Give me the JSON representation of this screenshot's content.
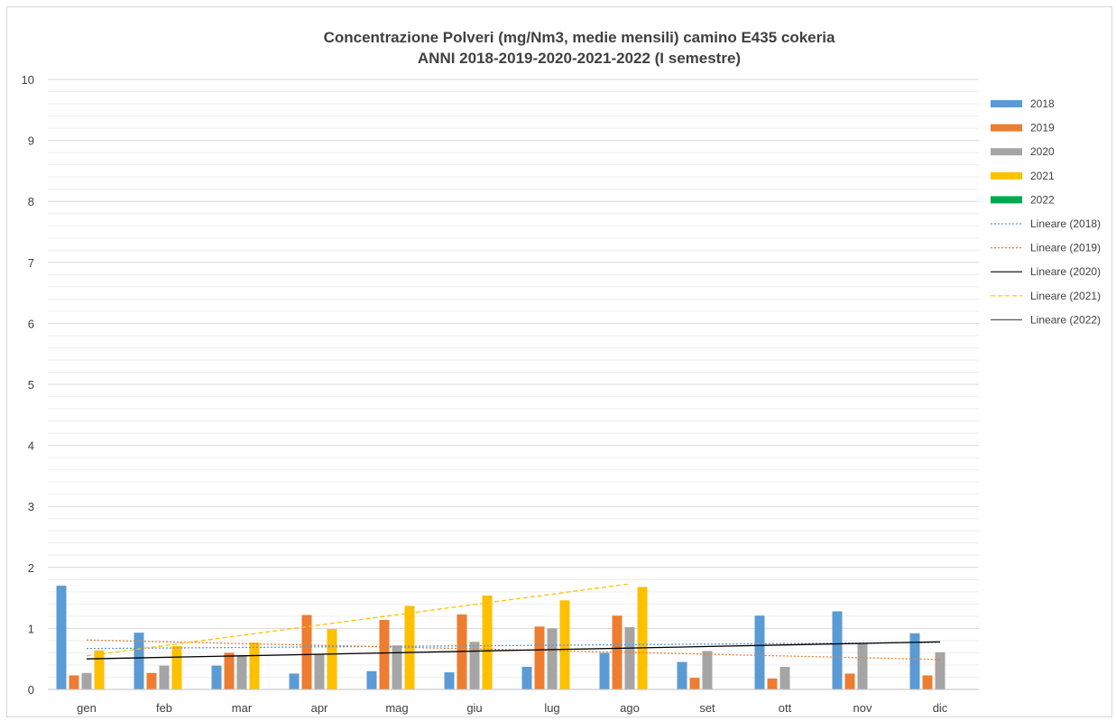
{
  "chart_data": {
    "type": "bar",
    "title": "Concentrazione Polveri (mg/Nm3, medie mensili) camino E435 cokeria",
    "subtitle": "ANNI 2018-2019-2020-2021-2022 (I semestre)",
    "categories": [
      "gen",
      "feb",
      "mar",
      "apr",
      "mag",
      "giu",
      "lug",
      "ago",
      "set",
      "ott",
      "nov",
      "dic"
    ],
    "ylim": [
      0,
      10
    ],
    "yticks": [
      0,
      1,
      2,
      3,
      4,
      5,
      6,
      7,
      8,
      9,
      10
    ],
    "grid": true,
    "legend_position": "right",
    "series": [
      {
        "name": "2018",
        "color": "#5b9bd5",
        "values": [
          1.7,
          0.93,
          0.39,
          0.26,
          0.3,
          0.28,
          0.37,
          0.6,
          0.45,
          1.21,
          1.28,
          0.92
        ]
      },
      {
        "name": "2019",
        "color": "#ed7d31",
        "values": [
          0.23,
          0.27,
          0.6,
          1.22,
          1.14,
          1.23,
          1.03,
          1.21,
          0.19,
          0.18,
          0.26,
          0.23
        ]
      },
      {
        "name": "2020",
        "color": "#a5a5a5",
        "values": [
          0.27,
          0.39,
          0.56,
          0.58,
          0.72,
          0.78,
          1.0,
          1.02,
          0.63,
          0.37,
          0.76,
          0.61
        ]
      },
      {
        "name": "2021",
        "color": "#ffc000",
        "values": [
          0.64,
          0.71,
          0.77,
          0.99,
          1.37,
          1.54,
          1.46,
          1.68,
          null,
          null,
          null,
          null
        ]
      },
      {
        "name": "2022",
        "color": "#00a94f",
        "values": [
          null,
          null,
          null,
          null,
          null,
          null,
          null,
          null,
          null,
          null,
          null,
          null
        ]
      }
    ],
    "trendlines": [
      {
        "name": "Lineare (2018)",
        "color": "#5b9bd5",
        "dash": "2,2",
        "start": 0.67,
        "end": 0.77,
        "first": 0,
        "last": 11
      },
      {
        "name": "Lineare (2019)",
        "color": "#ed7d31",
        "dash": "2,2",
        "start": 0.81,
        "end": 0.49,
        "first": 0,
        "last": 11
      },
      {
        "name": "Lineare (2020)",
        "color": "#000000",
        "dash": "",
        "start": 0.5,
        "end": 0.78,
        "first": 0,
        "last": 11
      },
      {
        "name": "Lineare (2021)",
        "color": "#ffc000",
        "dash": "5,3",
        "start": 0.55,
        "end": 1.73,
        "first": 0,
        "last": 7
      },
      {
        "name": "Lineare (2022)",
        "color": "#595959",
        "dash": "",
        "start": null,
        "end": null,
        "first": 0,
        "last": 0
      }
    ]
  }
}
